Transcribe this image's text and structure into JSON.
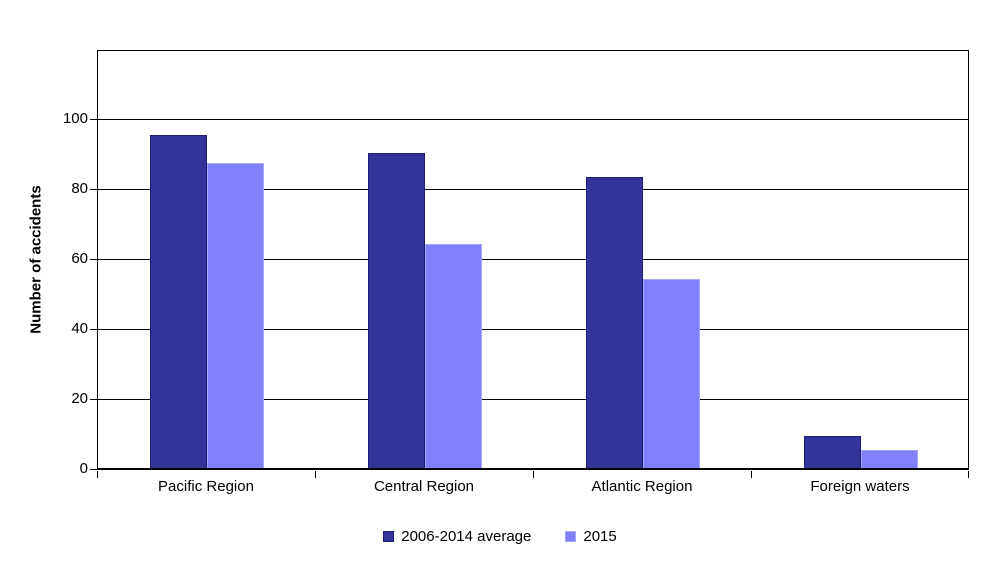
{
  "chart_data": {
    "type": "bar",
    "title": "",
    "ylabel": "Number of accidents",
    "xlabel": "",
    "categories": [
      "Pacific Region",
      "Central Region",
      "Atlantic Region",
      "Foreign waters"
    ],
    "series": [
      {
        "name": "2006-2014 average",
        "color": "#333399",
        "border_color": "#1c1c78",
        "values": [
          95,
          90,
          83,
          9
        ]
      },
      {
        "name": "2015",
        "color": "#8080fa",
        "border_color": "#a6a6fc",
        "values": [
          87,
          64,
          54,
          5
        ]
      }
    ],
    "yticks": [
      0,
      20,
      40,
      60,
      80,
      100
    ],
    "ylim": [
      0,
      120
    ],
    "grid": true,
    "gridline_color": "#000000",
    "axis_color": "#000000",
    "legend_position": "bottom"
  }
}
